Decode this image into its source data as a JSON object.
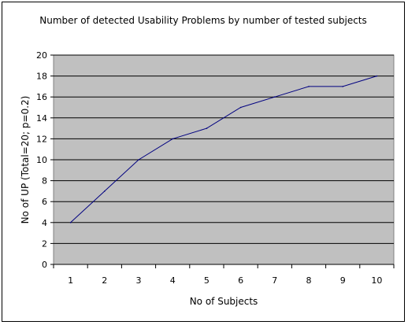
{
  "chart_data": {
    "type": "line",
    "title": "Number of detected Usability Problems by number of tested subjects",
    "xlabel": "No of Subjects",
    "ylabel": "No of UP (Total=20; p=0.2)",
    "categories": [
      "1",
      "2",
      "3",
      "4",
      "5",
      "6",
      "7",
      "8",
      "9",
      "10"
    ],
    "series": [
      {
        "values": [
          4,
          7,
          10,
          12,
          13,
          15,
          16,
          17,
          17,
          18
        ]
      }
    ],
    "ylim": [
      0,
      20
    ],
    "yticks": [
      "0",
      "2",
      "4",
      "6",
      "8",
      "10",
      "12",
      "14",
      "16",
      "18",
      "20"
    ],
    "grid": true,
    "legend": "none",
    "colors": {
      "plot_bg": "#c0c0c0",
      "line": "#000080",
      "grid": "#000000"
    }
  }
}
